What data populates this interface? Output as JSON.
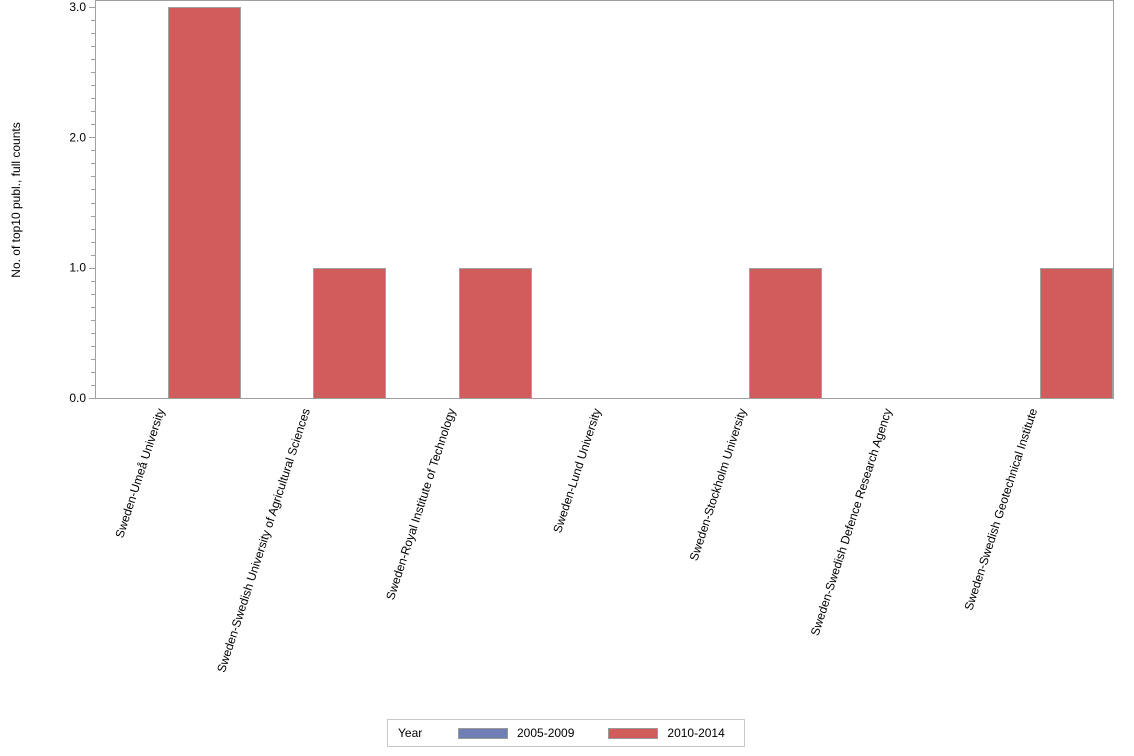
{
  "chart_data": {
    "type": "bar",
    "title": "",
    "xlabel": "",
    "ylabel": "No. of top10 publ., full counts",
    "ylim": [
      0,
      3.0
    ],
    "yticks": [
      "0.0",
      "1.0",
      "2.0",
      "3.0"
    ],
    "grid": false,
    "legend_position": "bottom",
    "legend_title": "Year",
    "categories": [
      "Sweden-Umeå University",
      "Sweden-Swedish University of Agricultural Sciences",
      "Sweden-Royal Institute of Technology",
      "Sweden-Lund University",
      "Sweden-Stockholm University",
      "Sweden-Swedish Defence Research Agency",
      "Sweden-Swedish Geotechnical Institute"
    ],
    "series": [
      {
        "name": "2005-2009",
        "color": "#6f7fb4",
        "values": [
          0,
          0,
          0,
          0,
          0,
          0,
          0
        ]
      },
      {
        "name": "2010-2014",
        "color": "#d05c5c",
        "values": [
          3,
          1,
          1,
          0,
          1,
          0,
          1
        ]
      }
    ]
  },
  "legend": {
    "title": "Year",
    "items": [
      {
        "label": "2005-2009",
        "color": "#6f7fb4"
      },
      {
        "label": "2010-2014",
        "color": "#d05c5c"
      }
    ]
  }
}
